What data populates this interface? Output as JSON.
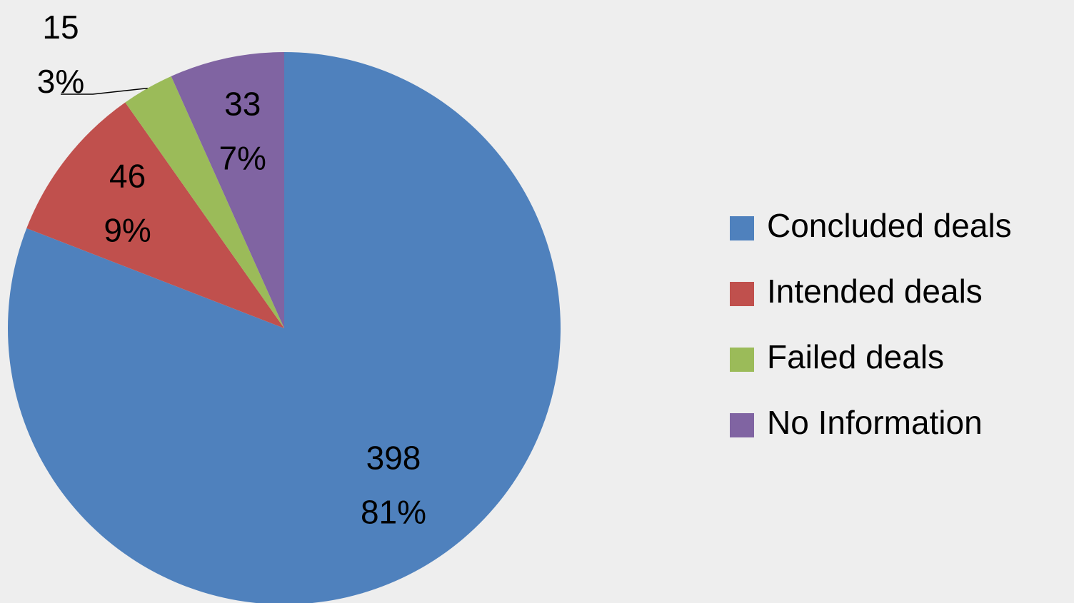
{
  "chart_data": {
    "type": "pie",
    "categories": [
      "Concluded deals",
      "Intended deals",
      "Failed deals",
      "No Information"
    ],
    "values": [
      398,
      46,
      15,
      33
    ],
    "percent_labels": [
      "81%",
      "9%",
      "3%",
      "7%"
    ],
    "colors": [
      "#4f81bd",
      "#c0504d",
      "#9bbb59",
      "#8064a2"
    ],
    "legend": "right"
  }
}
